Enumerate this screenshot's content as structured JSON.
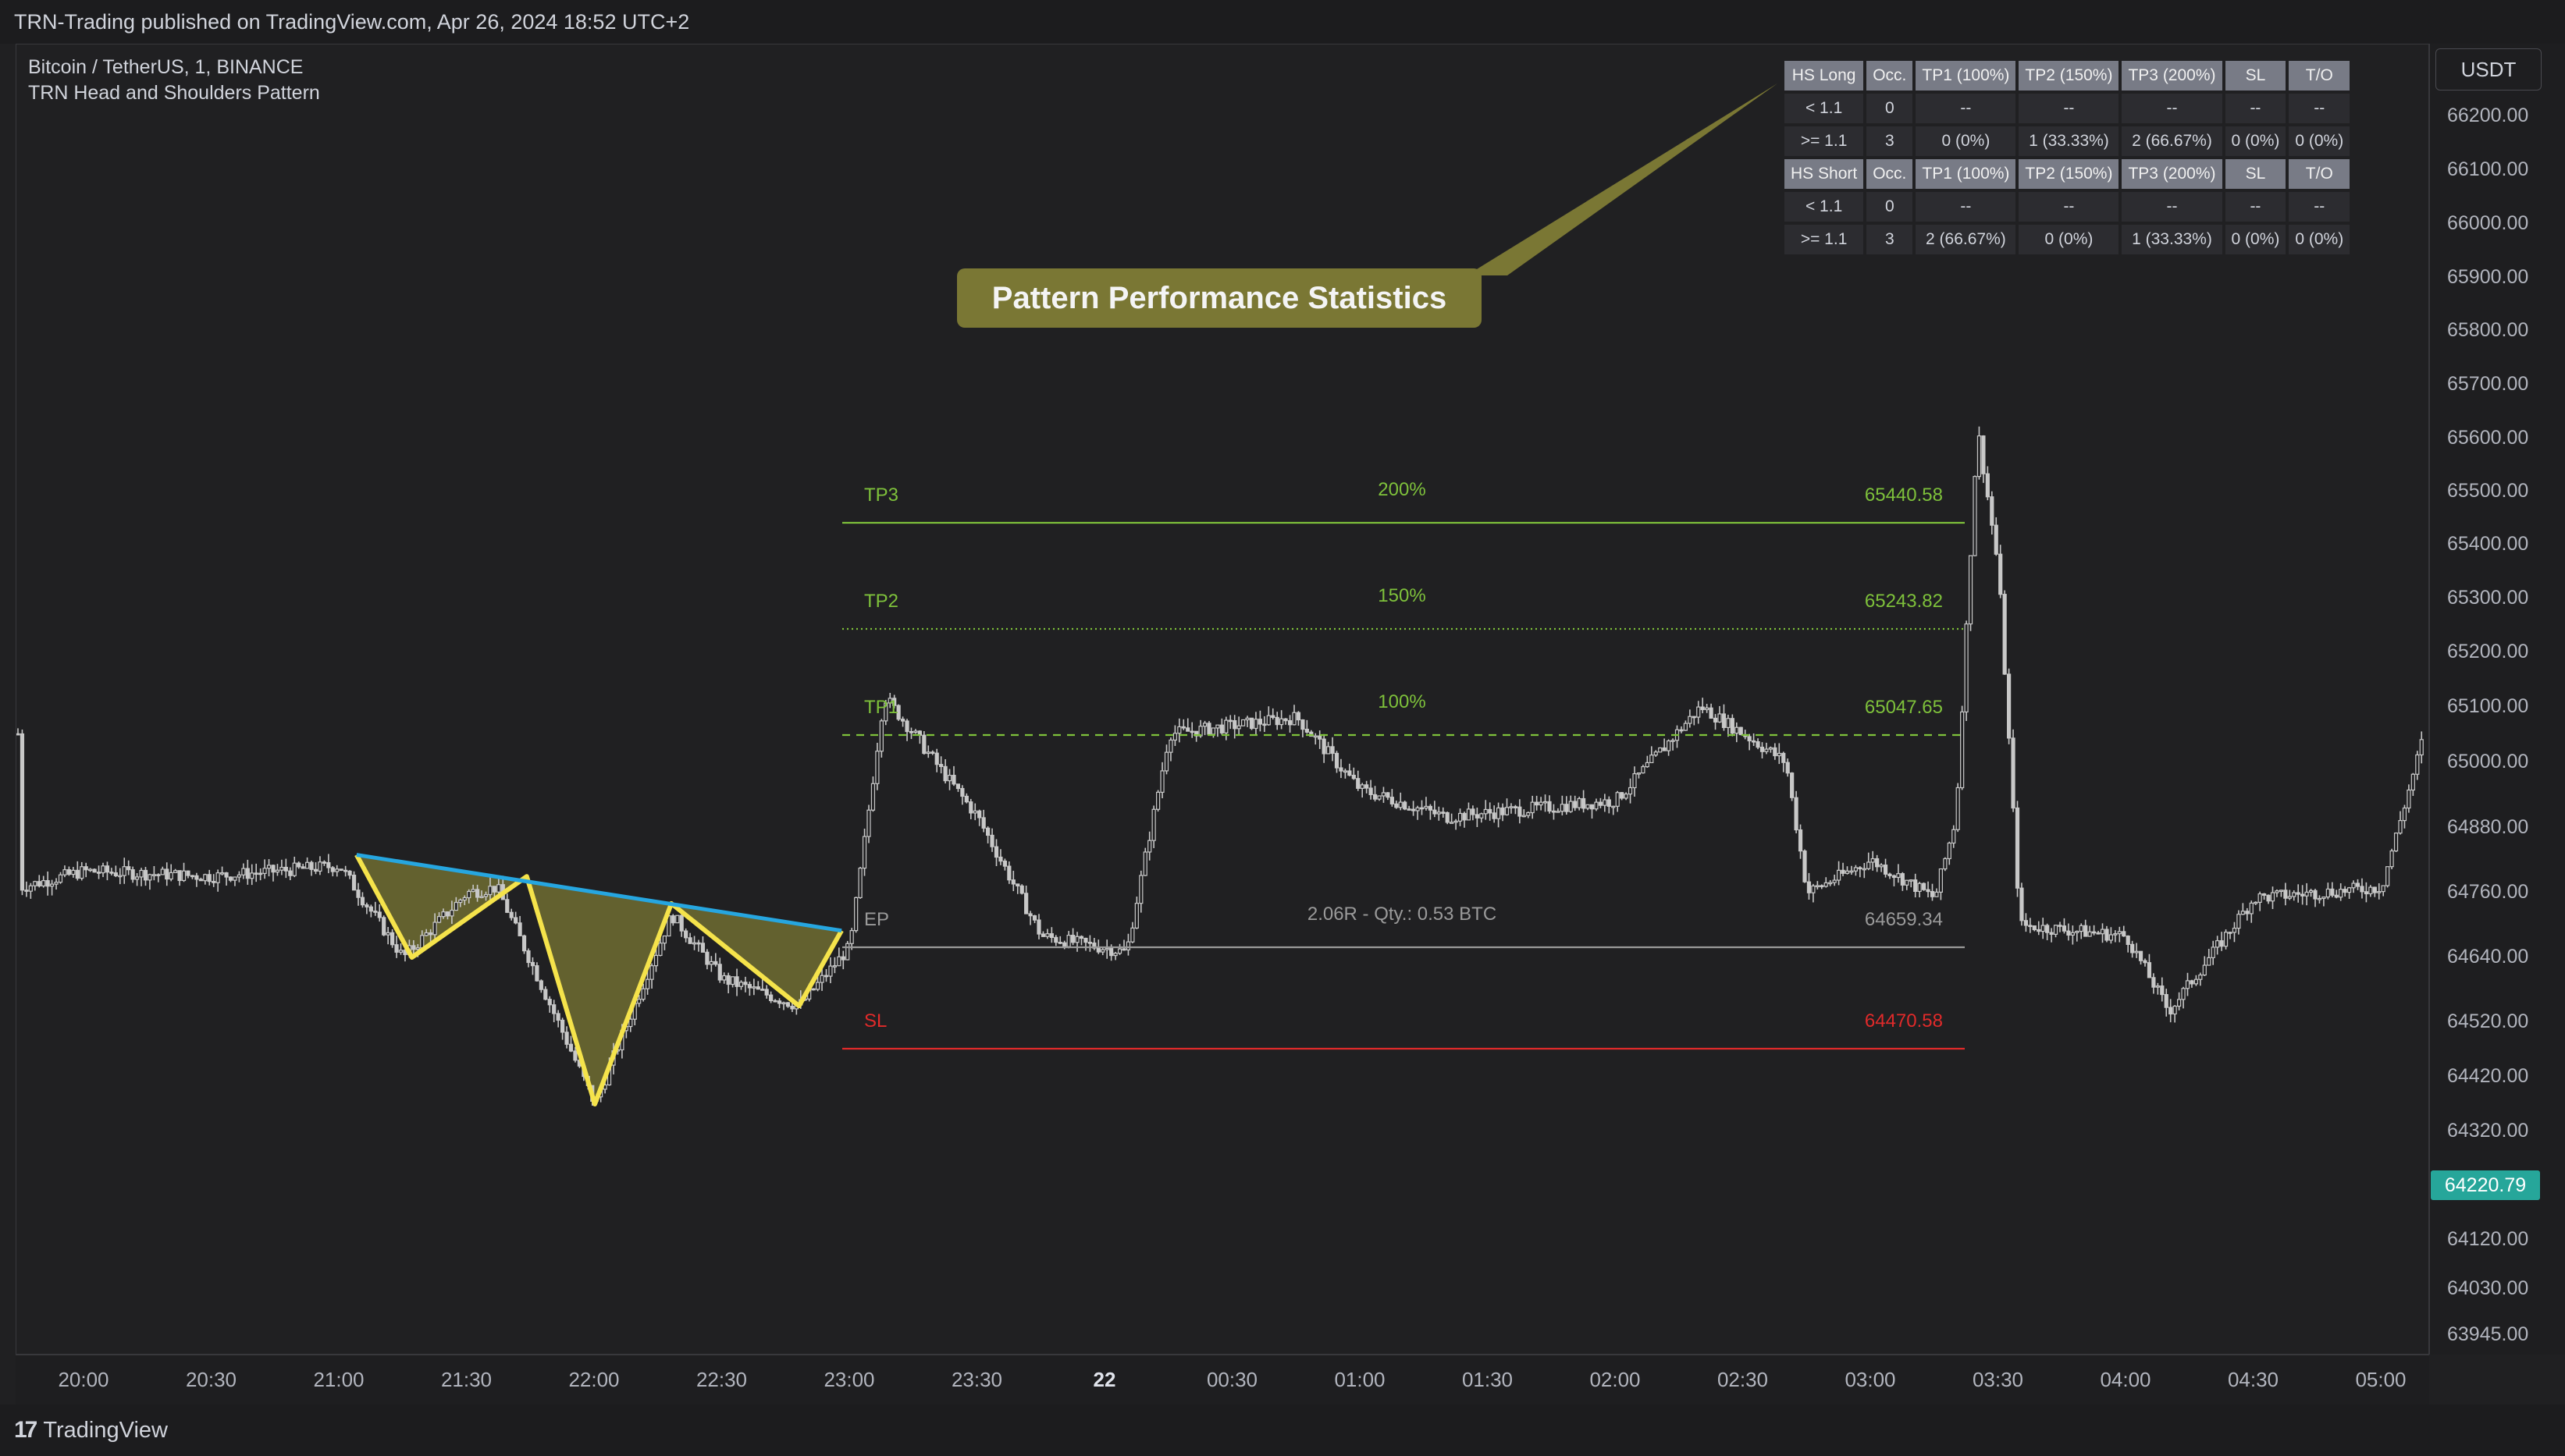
{
  "header": {
    "published_text": "TRN-Trading published on TradingView.com, Apr 26, 2024 18:52 UTC+2"
  },
  "symbol": {
    "line1": "Bitcoin / TetherUS, 1, BINANCE",
    "line2": "TRN Head and Shoulders Pattern"
  },
  "price_axis": {
    "currency": "USDT",
    "last_price": "64220.79",
    "ticks": [
      "66200.00",
      "66100.00",
      "66000.00",
      "65900.00",
      "65800.00",
      "65700.00",
      "65600.00",
      "65500.00",
      "65400.00",
      "65300.00",
      "65200.00",
      "65100.00",
      "65000.00",
      "64880.00",
      "64760.00",
      "64640.00",
      "64520.00",
      "64420.00",
      "64320.00",
      "64220.79",
      "64120.00",
      "64030.00",
      "63945.00"
    ]
  },
  "time_axis": {
    "ticks": [
      "20:00",
      "20:30",
      "21:00",
      "21:30",
      "22:00",
      "22:30",
      "23:00",
      "23:30",
      "22",
      "00:30",
      "01:00",
      "01:30",
      "02:00",
      "02:30",
      "03:00",
      "03:30",
      "04:00",
      "04:30",
      "05:00"
    ]
  },
  "callout": {
    "text": "Pattern Performance Statistics"
  },
  "stats_table": {
    "long_header": [
      "HS Long",
      "Occ.",
      "TP1 (100%)",
      "TP2 (150%)",
      "TP3 (200%)",
      "SL",
      "T/O"
    ],
    "long_rows": [
      [
        "< 1.1",
        "0",
        "--",
        "--",
        "--",
        "--",
        "--"
      ],
      [
        ">= 1.1",
        "3",
        "0 (0%)",
        "1 (33.33%)",
        "2 (66.67%)",
        "0 (0%)",
        "0 (0%)"
      ]
    ],
    "short_header": [
      "HS Short",
      "Occ.",
      "TP1 (100%)",
      "TP2 (150%)",
      "TP3 (200%)",
      "SL",
      "T/O"
    ],
    "short_rows": [
      [
        "< 1.1",
        "0",
        "--",
        "--",
        "--",
        "--",
        "--"
      ],
      [
        ">= 1.1",
        "3",
        "2 (66.67%)",
        "0 (0%)",
        "1 (33.33%)",
        "0 (0%)",
        "0 (0%)"
      ]
    ]
  },
  "levels": {
    "tp3": {
      "label": "TP3",
      "pct": "200%",
      "value": "65440.58",
      "price": 65440.58
    },
    "tp2": {
      "label": "TP2",
      "pct": "150%",
      "value": "65243.82",
      "price": 65243.82
    },
    "tp1": {
      "label": "TP1",
      "pct": "100%",
      "value": "65047.65",
      "price": 65047.65
    },
    "ep": {
      "label": "EP",
      "note": "2.06R - Qty.: 0.53 BTC",
      "value": "64659.34",
      "price": 64659.34
    },
    "sl": {
      "label": "SL",
      "value": "64470.58",
      "price": 64470.58
    }
  },
  "footer": {
    "brand": "TradingView"
  },
  "colors": {
    "background": "#202022",
    "candle": "#c8c8c8",
    "tp": "#7ec13b",
    "ep": "#9a9a9a",
    "sl": "#e12a2a",
    "neckline": "#26a6e0",
    "pattern_line": "#f5e34b",
    "pattern_fill": "#7a7734",
    "last_price_bg": "#26a69a"
  },
  "chart_data": {
    "type": "candlestick",
    "symbol": "Bitcoin / TetherUS, 1, BINANCE",
    "indicator": "TRN Head and Shoulders Pattern",
    "xlabels": [
      "20:00",
      "20:30",
      "21:00",
      "21:30",
      "22:00",
      "22:30",
      "23:00",
      "23:30",
      "22",
      "00:30",
      "01:00",
      "01:30",
      "02:00",
      "02:30",
      "03:00",
      "03:30",
      "04:00",
      "04:30",
      "05:00"
    ],
    "ylim": [
      63945,
      66240
    ],
    "price_path": [
      [
        "19:45",
        64770
      ],
      [
        "20:00",
        64800
      ],
      [
        "20:30",
        64790
      ],
      [
        "21:00",
        64810
      ],
      [
        "21:15",
        64640
      ],
      [
        "21:30",
        64760
      ],
      [
        "21:37",
        64770
      ],
      [
        "22:00",
        64370
      ],
      [
        "22:18",
        64720
      ],
      [
        "22:30",
        64600
      ],
      [
        "22:48",
        64550
      ],
      [
        "23:00",
        64660
      ],
      [
        "23:08",
        65120
      ],
      [
        "23:30",
        64900
      ],
      [
        "23:45",
        64680
      ],
      [
        "00:05",
        64650
      ],
      [
        "00:15",
        65050
      ],
      [
        "00:45",
        65080
      ],
      [
        "01:00",
        64950
      ],
      [
        "01:20",
        64900
      ],
      [
        "02:00",
        64930
      ],
      [
        "02:20",
        65100
      ],
      [
        "02:40",
        65000
      ],
      [
        "02:45",
        64760
      ],
      [
        "03:00",
        64820
      ],
      [
        "03:15",
        64750
      ],
      [
        "03:20",
        64900
      ],
      [
        "03:25",
        65620
      ],
      [
        "03:30",
        65350
      ],
      [
        "03:35",
        64700
      ],
      [
        "04:00",
        64680
      ],
      [
        "04:10",
        64540
      ],
      [
        "04:30",
        64750
      ],
      [
        "05:00",
        64770
      ],
      [
        "05:10",
        65050
      ]
    ],
    "pattern_pivots": [
      [
        "21:04",
        64830
      ],
      [
        "21:17",
        64640
      ],
      [
        "21:44",
        64790
      ],
      [
        "22:00",
        64370
      ],
      [
        "22:18",
        64740
      ],
      [
        "22:48",
        64550
      ],
      [
        "22:58",
        64690
      ]
    ],
    "neckline": [
      [
        "21:04",
        64830
      ],
      [
        "22:58",
        64690
      ]
    ],
    "levels": {
      "TP3": 65440.58,
      "TP2": 65243.82,
      "TP1": 65047.65,
      "EP": 64659.34,
      "SL": 64470.58
    },
    "last_price": 64220.79
  }
}
